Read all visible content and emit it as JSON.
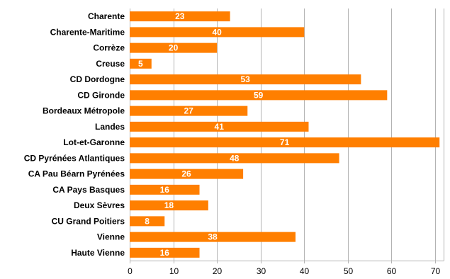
{
  "chart_data": {
    "type": "bar",
    "orientation": "horizontal",
    "categories": [
      "Charente",
      "Charente-Maritime",
      "Corrèze",
      "Creuse",
      "CD  Dordogne",
      "CD Gironde",
      "Bordeaux Métropole",
      "Landes",
      "Lot-et-Garonne",
      "CD Pyrénées  Atlantiques",
      "CA Pau Béarn  Pyrénées",
      "CA Pays Basques",
      "Deux Sèvres",
      "CU Grand Poitiers",
      "Vienne",
      "Haute Vienne"
    ],
    "values": [
      23,
      40,
      20,
      5,
      53,
      59,
      27,
      41,
      71,
      48,
      26,
      16,
      18,
      8,
      38,
      16
    ],
    "xticks": [
      0,
      10,
      20,
      30,
      40,
      50,
      60,
      70
    ],
    "xlim": [
      0,
      72
    ],
    "title": "",
    "xlabel": "",
    "ylabel": "",
    "grid": "vertical",
    "legend": "none",
    "bar_color": "#ff7f00",
    "grid_color": "#b3b3b3"
  }
}
